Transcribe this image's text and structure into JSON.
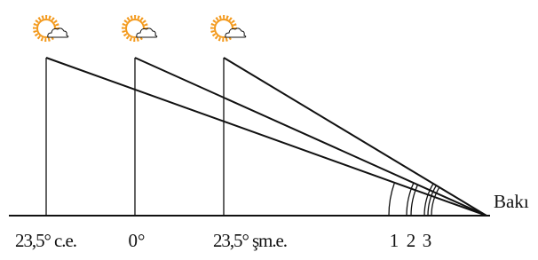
{
  "positions": [
    {
      "label": "23,5° c.e."
    },
    {
      "label": "0°"
    },
    {
      "label": "23,5° şm.e."
    }
  ],
  "angle_labels": [
    "1",
    "2",
    "3"
  ],
  "place": "Bakı"
}
